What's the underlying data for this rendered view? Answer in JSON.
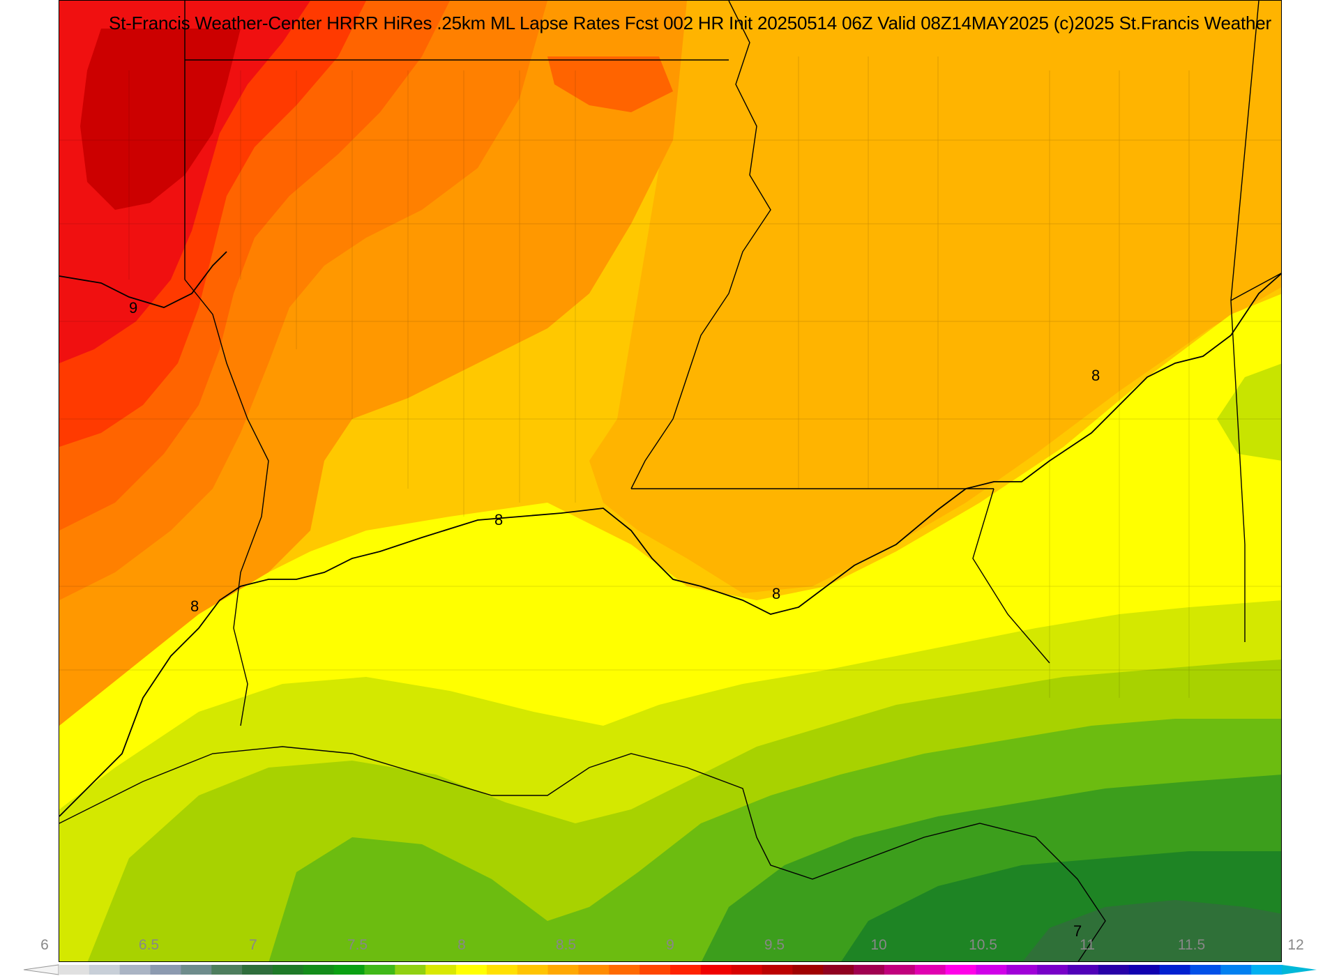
{
  "title": "St-Francis Weather-Center HRRR HiRes .25km ML Lapse Rates  Fcst 002 HR Init 20250514 06Z  Valid 08Z14MAY2025   (c)2025 St.Francis Weather",
  "colorbar": {
    "ticks": [
      "6",
      "6.5",
      "7",
      "7.5",
      "8",
      "8.5",
      "9",
      "9.5",
      "10",
      "10.5",
      "11",
      "11.5",
      "12"
    ],
    "colors": [
      "#e0e0e0",
      "#c8cfd8",
      "#aab4c4",
      "#8c9ab0",
      "#6e8c8c",
      "#4e7e5e",
      "#2f6e3c",
      "#1e7a28",
      "#138c1a",
      "#0aa012",
      "#40b818",
      "#90d010",
      "#d8e800",
      "#ffff00",
      "#ffe000",
      "#ffc400",
      "#ffa800",
      "#ff8c00",
      "#ff6a00",
      "#ff4600",
      "#ff2200",
      "#f00000",
      "#d80000",
      "#bc0000",
      "#a00000",
      "#900020",
      "#a00050",
      "#c0007c",
      "#e000b0",
      "#ff00e8",
      "#d000e8",
      "#a000d8",
      "#7800c8",
      "#5000b8",
      "#2800a8",
      "#1000b0",
      "#0020d0",
      "#0050e8",
      "#0080f0",
      "#00b0f0"
    ],
    "arrow_left_color": "#f4f4f4",
    "arrow_right_color": "#00b8d8"
  },
  "contour_labels": [
    "9",
    "8",
    "8",
    "8",
    "8",
    "7"
  ],
  "fill_colors": {
    "dark_red": "#cc0000",
    "red": "#f01010",
    "red_orange": "#ff4400",
    "orange_red": "#ff6a00",
    "orange": "#ff8c00",
    "light_orange": "#ffa800",
    "amber": "#ffc000",
    "yellow_orange": "#ffdc00",
    "yellow": "#ffff00",
    "yellow_green": "#d8e800",
    "light_green": "#a8d400",
    "green": "#6cbc10",
    "mid_green": "#3c9e1c",
    "dark_green": "#1e8424",
    "darkest_green": "#2f7038"
  }
}
